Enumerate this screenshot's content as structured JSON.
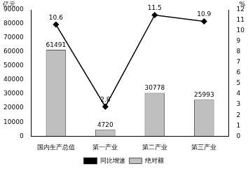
{
  "chart_data": {
    "type": "bar",
    "categories": [
      "国内生产总值",
      "第一产业",
      "第二产业",
      "第三产业"
    ],
    "series": [
      {
        "name": "绝对额",
        "type": "bar",
        "color": "#c0c0c0",
        "values": [
          61491,
          4720,
          30778,
          25993
        ]
      },
      {
        "name": "同比增速",
        "type": "line",
        "color": "#000000",
        "marker": "diamond",
        "axis": "y2",
        "values": [
          10.6,
          2.8,
          11.5,
          10.9
        ]
      }
    ],
    "y_label": "亿元",
    "y2_label": "%",
    "ylim": [
      0,
      90000
    ],
    "yticks": [
      0,
      10000,
      20000,
      30000,
      40000,
      50000,
      60000,
      70000,
      80000,
      90000
    ],
    "y2lim": [
      0,
      12
    ],
    "y2ticks": [
      0,
      1,
      2,
      3,
      4,
      5,
      6,
      7,
      8,
      9,
      10,
      11,
      12
    ],
    "data_labels": true,
    "legend": "bottom",
    "grid": false
  }
}
